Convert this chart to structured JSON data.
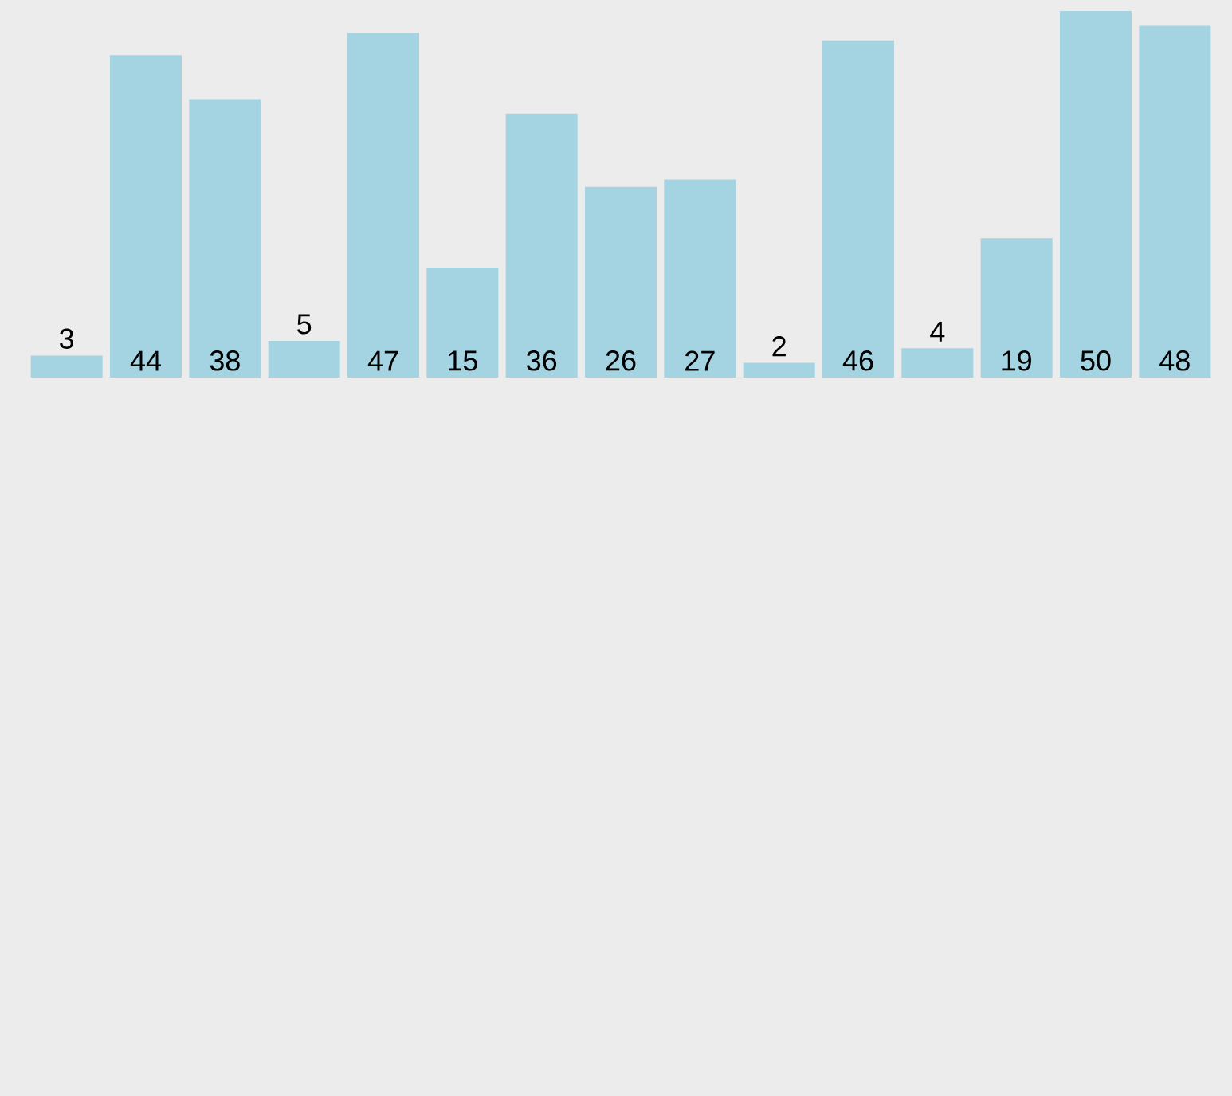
{
  "chart_data": {
    "type": "bar",
    "categories": [
      null,
      null,
      null,
      null,
      null,
      null,
      null,
      null,
      null,
      null,
      null,
      null,
      null,
      null,
      null
    ],
    "values": [
      3,
      44,
      38,
      5,
      47,
      15,
      36,
      26,
      27,
      2,
      46,
      4,
      19,
      50,
      48
    ],
    "color": "#a4d4e2",
    "data_labels": true
  }
}
